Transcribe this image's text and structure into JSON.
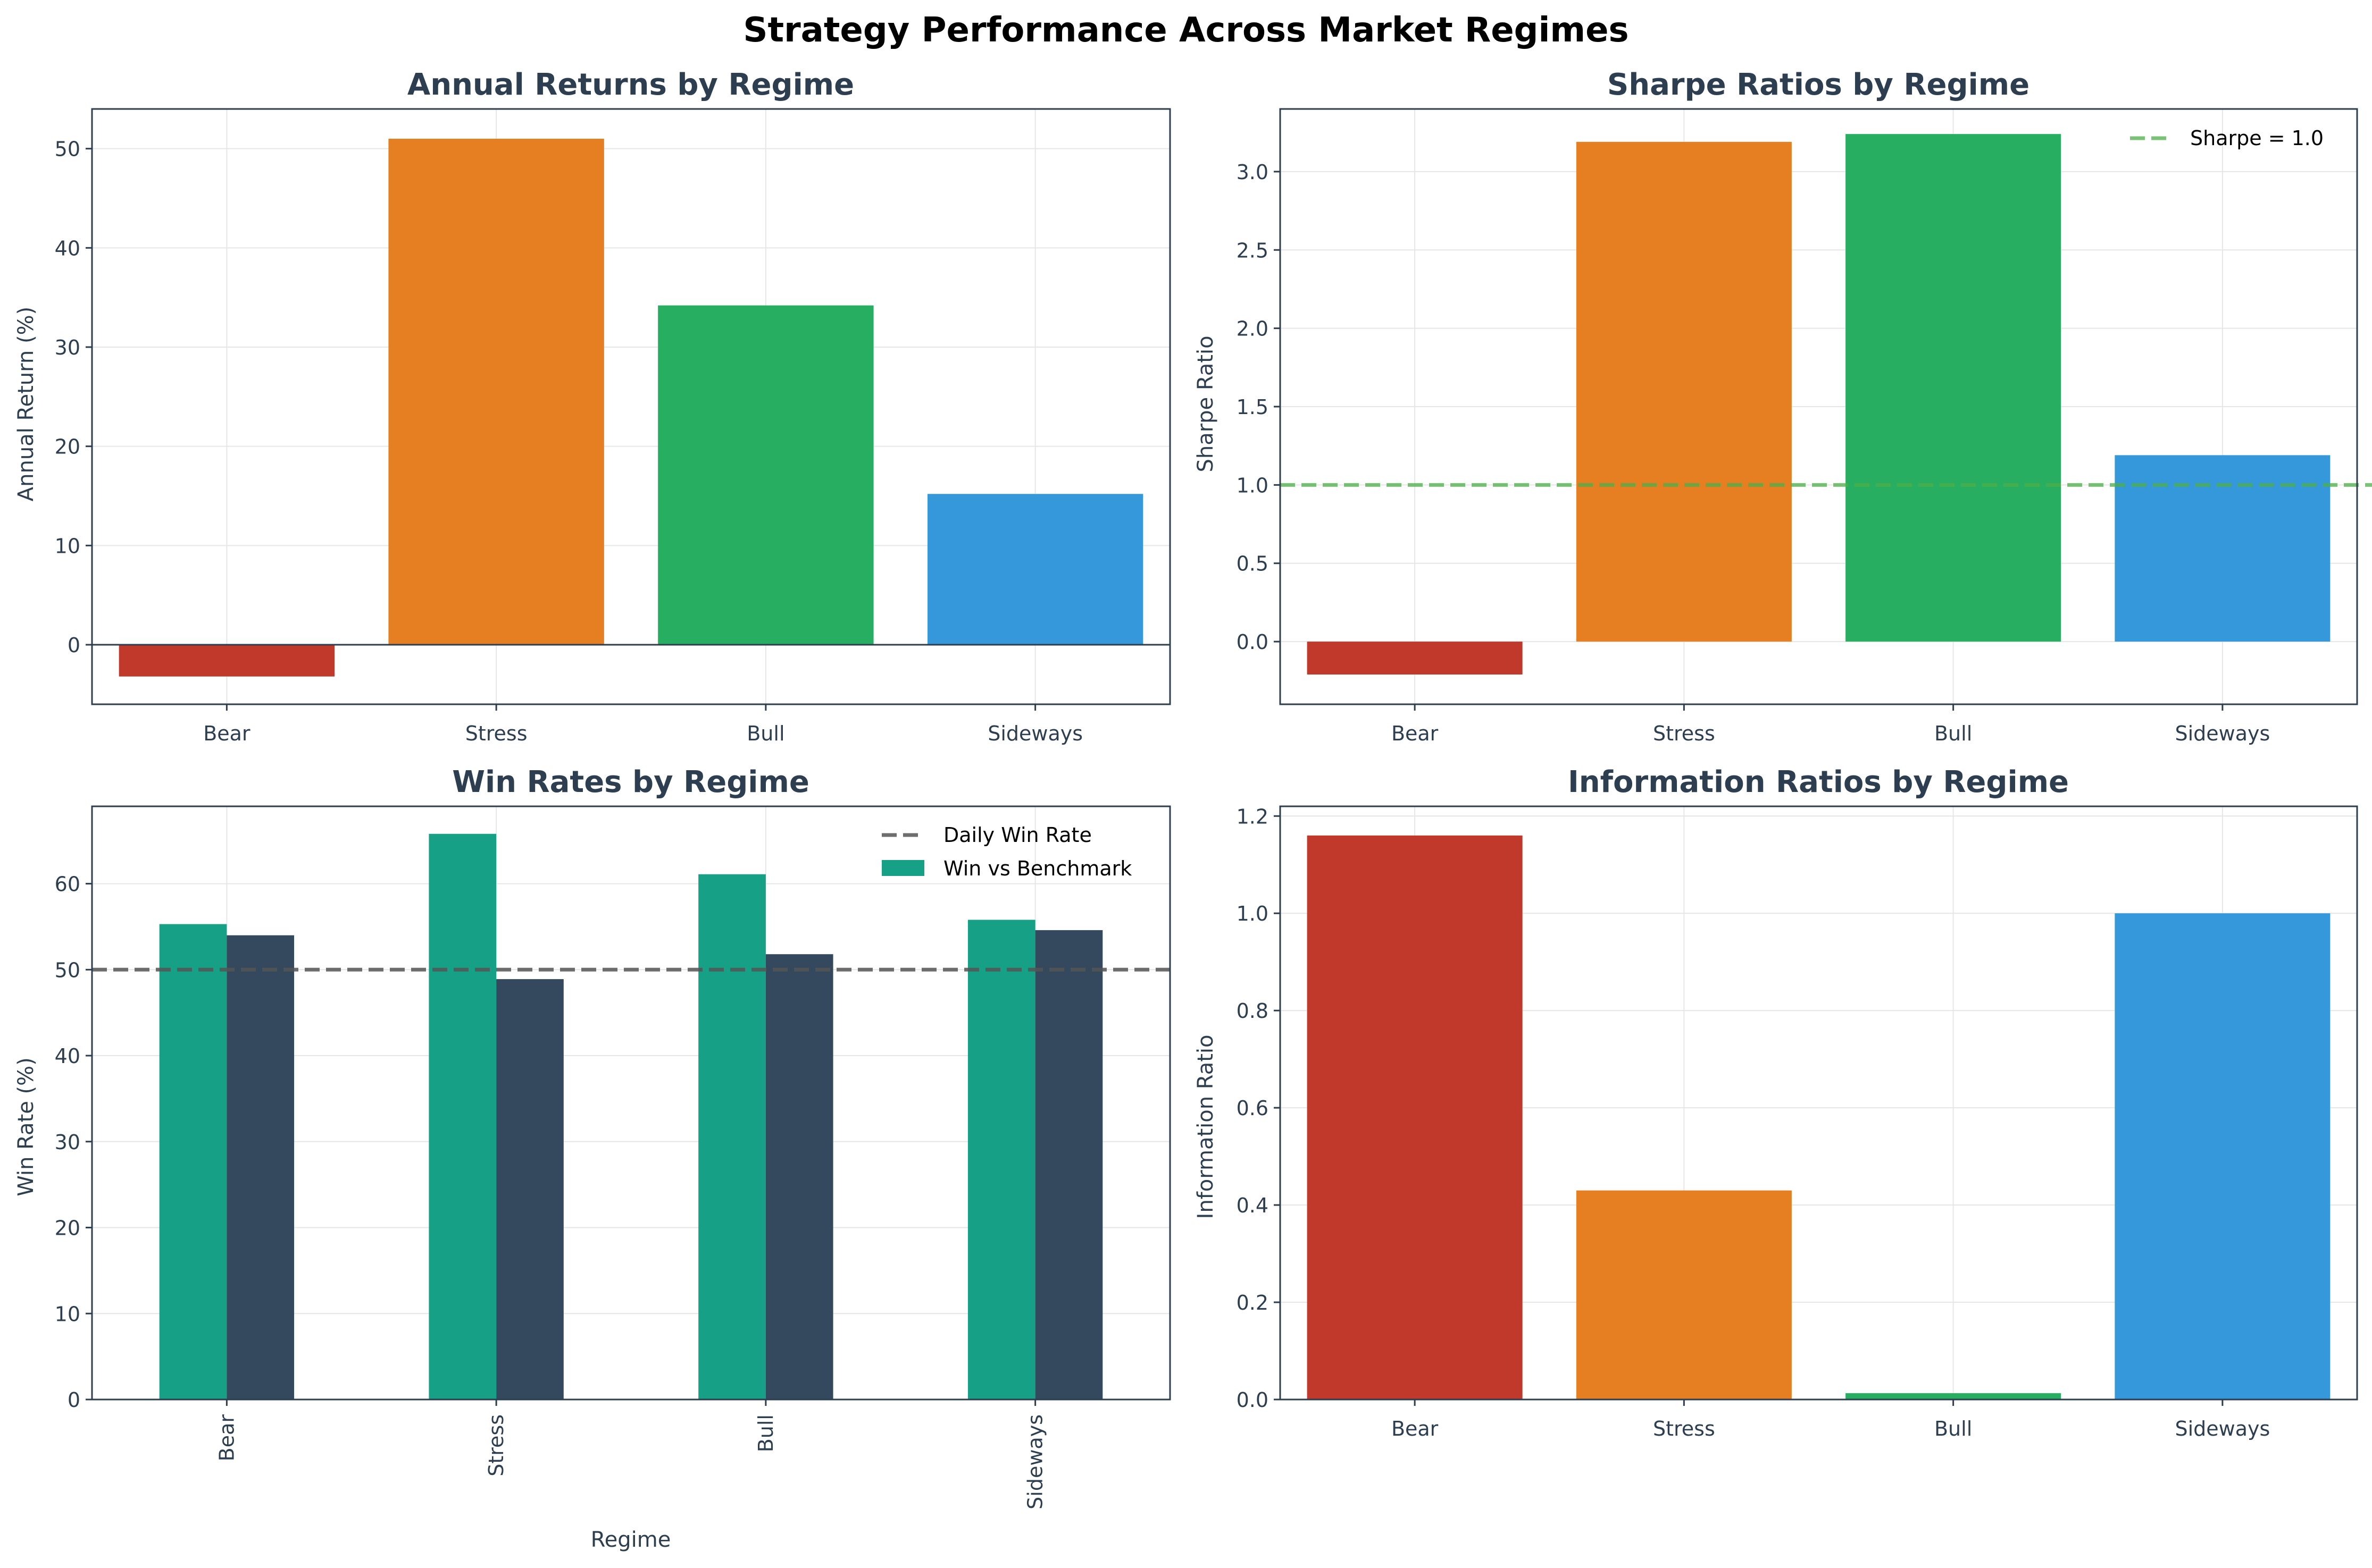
{
  "figure": {
    "title": "Strategy Performance Across Market Regimes"
  },
  "colors": {
    "bear": "#c0392b",
    "stress": "#e67e22",
    "bull": "#27ae60",
    "sideways": "#3498db",
    "teal": "#16a085",
    "navy": "#34495e",
    "text": "#2c3e50",
    "grid": "#e6e6e6",
    "sharpe_line": "#4daf4a",
    "daily_line": "#555555"
  },
  "chart_data": [
    {
      "type": "bar",
      "title": "Annual Returns by Regime",
      "xlabel": "",
      "ylabel": "Annual Return (%)",
      "categories": [
        "Bear",
        "Stress",
        "Bull",
        "Sideways"
      ],
      "values": [
        -3.2,
        51.0,
        34.2,
        15.2
      ],
      "ylim": [
        -6,
        54
      ],
      "yticks": [
        0,
        10,
        20,
        30,
        40,
        50
      ],
      "zero_line": true,
      "grid": true
    },
    {
      "type": "bar",
      "title": "Sharpe Ratios by Regime",
      "xlabel": "",
      "ylabel": "Sharpe Ratio",
      "categories": [
        "Bear",
        "Stress",
        "Bull",
        "Sideways"
      ],
      "values": [
        -0.21,
        3.19,
        3.24,
        1.19
      ],
      "ylim": [
        -0.4,
        3.4
      ],
      "yticks": [
        0.0,
        0.5,
        1.0,
        1.5,
        2.0,
        2.5,
        3.0
      ],
      "reference_line": {
        "value": 1.0,
        "label": "Sharpe = 1.0"
      },
      "legend": "top-right",
      "grid": true
    },
    {
      "type": "bar",
      "title": "Win Rates by Regime",
      "xlabel": "Regime",
      "ylabel": "Win Rate (%)",
      "categories": [
        "Bear",
        "Stress",
        "Bull",
        "Sideways"
      ],
      "series": [
        {
          "name": "Win vs Benchmark",
          "values": [
            55.3,
            65.8,
            61.1,
            55.8
          ]
        },
        {
          "values": [
            54.0,
            48.9,
            51.8,
            54.6
          ]
        }
      ],
      "reference_line": {
        "value": 50,
        "label": "Daily Win Rate"
      },
      "ylim": [
        0,
        69
      ],
      "yticks": [
        0,
        10,
        20,
        30,
        40,
        50,
        60
      ],
      "xtick_rotation": 90,
      "legend": "top-right",
      "grid": true
    },
    {
      "type": "bar",
      "title": "Information Ratios by Regime",
      "xlabel": "",
      "ylabel": "Information Ratio",
      "categories": [
        "Bear",
        "Stress",
        "Bull",
        "Sideways"
      ],
      "values": [
        1.16,
        0.43,
        0.013,
        1.0
      ],
      "ylim": [
        0,
        1.22
      ],
      "yticks": [
        0.0,
        0.2,
        0.4,
        0.6,
        0.8,
        1.0,
        1.2
      ],
      "grid": true
    }
  ]
}
